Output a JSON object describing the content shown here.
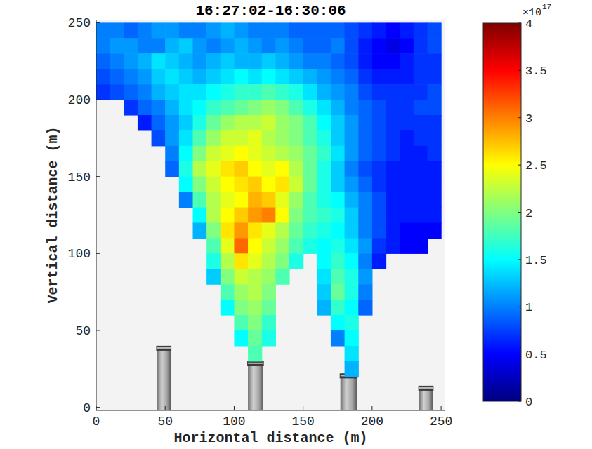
{
  "chart_data": {
    "type": "heatmap",
    "title": "16:27:02-16:30:06",
    "x_label": "Horizontal distance (m)",
    "y_label": "Vertical distance (m)",
    "xlim": [
      0,
      253
    ],
    "ylim": [
      -2,
      252
    ],
    "xticks": [
      0,
      50,
      100,
      150,
      200,
      250
    ],
    "yticks": [
      0,
      50,
      100,
      150,
      200,
      250
    ],
    "x": [
      5,
      15,
      25,
      35,
      45,
      55,
      65,
      75,
      85,
      95,
      105,
      115,
      125,
      135,
      145,
      155,
      165,
      175,
      185,
      195,
      205,
      215,
      225,
      235,
      245
    ],
    "y": [
      245,
      235,
      225,
      215,
      205,
      195,
      185,
      175,
      165,
      155,
      145,
      135,
      125,
      115,
      105,
      95,
      85,
      75,
      65,
      55,
      45,
      35,
      25,
      15,
      5
    ],
    "cells": [
      [
        1.0,
        1.0,
        0.9,
        1.0,
        1.1,
        1.1,
        1.0,
        1.0,
        1.1,
        1.2,
        1.1,
        1.0,
        1.0,
        1.0,
        0.9,
        0.9,
        0.9,
        0.9,
        0.8,
        0.7,
        0.6,
        0.5,
        0.6,
        0.7,
        0.8
      ],
      [
        1.0,
        1.1,
        1.1,
        1.0,
        1.0,
        1.2,
        1.3,
        1.1,
        1.0,
        1.1,
        1.2,
        1.1,
        1.0,
        1.1,
        1.0,
        0.9,
        0.9,
        1.0,
        0.8,
        0.6,
        0.5,
        0.4,
        0.5,
        0.7,
        0.8
      ],
      [
        0.9,
        1.0,
        1.1,
        1.2,
        1.4,
        1.3,
        1.2,
        1.1,
        1.2,
        1.3,
        1.2,
        1.2,
        1.3,
        1.2,
        1.1,
        1.0,
        1.0,
        0.9,
        0.8,
        0.6,
        0.5,
        0.5,
        0.6,
        0.7,
        0.7
      ],
      [
        0.8,
        0.9,
        1.0,
        1.1,
        1.3,
        1.4,
        1.3,
        1.2,
        1.3,
        1.4,
        1.5,
        1.4,
        1.5,
        1.4,
        1.3,
        1.2,
        1.1,
        1.0,
        0.9,
        0.7,
        0.6,
        0.6,
        0.6,
        0.7,
        0.7
      ],
      [
        0.7,
        0.8,
        0.9,
        1.0,
        1.2,
        1.3,
        1.4,
        1.4,
        1.5,
        1.6,
        1.7,
        1.7,
        1.8,
        1.7,
        1.6,
        1.4,
        1.2,
        1.1,
        1.0,
        0.8,
        0.7,
        0.7,
        0.7,
        0.7,
        0.8
      ],
      [
        null,
        null,
        0.7,
        0.9,
        1.0,
        1.2,
        1.4,
        1.5,
        1.7,
        1.8,
        1.9,
        2.0,
        2.1,
        2.0,
        1.8,
        1.6,
        1.4,
        1.2,
        1.0,
        0.9,
        0.8,
        0.7,
        0.7,
        0.8,
        0.8
      ],
      [
        null,
        null,
        null,
        0.6,
        0.9,
        1.1,
        1.3,
        1.6,
        1.9,
        2.1,
        2.2,
        2.2,
        2.3,
        2.1,
        2.0,
        1.8,
        1.5,
        1.3,
        1.1,
        0.9,
        0.8,
        0.7,
        0.7,
        0.7,
        0.7
      ],
      [
        null,
        null,
        null,
        null,
        0.8,
        1.1,
        1.4,
        1.8,
        2.1,
        2.3,
        2.3,
        2.4,
        2.2,
        2.1,
        2.0,
        1.8,
        1.6,
        1.3,
        1.1,
        0.9,
        0.8,
        0.7,
        0.6,
        0.7,
        0.7
      ],
      [
        null,
        null,
        null,
        null,
        null,
        1.0,
        1.5,
        2.0,
        2.3,
        2.4,
        2.5,
        2.4,
        2.3,
        2.2,
        2.1,
        1.9,
        1.7,
        1.4,
        1.1,
        0.9,
        0.8,
        0.7,
        0.6,
        0.6,
        0.7
      ],
      [
        null,
        null,
        null,
        null,
        null,
        0.9,
        1.6,
        2.2,
        2.4,
        2.6,
        2.7,
        2.5,
        2.4,
        2.5,
        2.2,
        1.9,
        1.6,
        1.3,
        1.0,
        0.8,
        0.7,
        0.6,
        0.6,
        0.6,
        0.6
      ],
      [
        null,
        null,
        null,
        null,
        null,
        null,
        1.5,
        2.0,
        2.3,
        2.5,
        2.6,
        2.7,
        2.5,
        2.6,
        2.3,
        1.9,
        1.6,
        1.3,
        1.1,
        0.9,
        0.7,
        0.6,
        0.6,
        0.6,
        0.6
      ],
      [
        null,
        null,
        null,
        null,
        null,
        null,
        1.0,
        1.8,
        2.2,
        2.4,
        2.5,
        2.8,
        2.7,
        2.4,
        2.1,
        1.8,
        1.6,
        1.5,
        1.2,
        1.0,
        0.8,
        0.6,
        0.6,
        0.6,
        0.6
      ],
      [
        null,
        null,
        null,
        null,
        null,
        null,
        null,
        1.5,
        2.2,
        2.5,
        2.7,
        2.9,
        3.0,
        2.5,
        2.0,
        1.8,
        1.7,
        1.6,
        1.3,
        1.0,
        0.8,
        0.6,
        0.6,
        0.6,
        0.6
      ],
      [
        null,
        null,
        null,
        null,
        null,
        null,
        null,
        1.2,
        2.0,
        2.6,
        2.9,
        2.6,
        2.4,
        2.2,
        1.9,
        1.7,
        1.6,
        1.5,
        1.3,
        1.0,
        0.8,
        0.6,
        0.5,
        0.5,
        0.5
      ],
      [
        null,
        null,
        null,
        null,
        null,
        null,
        null,
        null,
        1.8,
        2.4,
        3.1,
        2.5,
        2.3,
        2.1,
        1.8,
        1.6,
        1.5,
        1.6,
        1.4,
        1.1,
        0.7,
        0.6,
        0.5,
        0.5,
        null
      ],
      [
        null,
        null,
        null,
        null,
        null,
        null,
        null,
        null,
        1.6,
        2.2,
        2.6,
        2.4,
        2.2,
        2.0,
        1.6,
        null,
        1.5,
        1.7,
        1.5,
        1.0,
        0.6,
        null,
        null,
        null,
        null
      ],
      [
        null,
        null,
        null,
        null,
        null,
        null,
        null,
        null,
        1.3,
        2.0,
        2.3,
        2.2,
        2.1,
        1.8,
        null,
        null,
        1.4,
        1.8,
        1.6,
        1.1,
        null,
        null,
        null,
        null,
        null
      ],
      [
        null,
        null,
        null,
        null,
        null,
        null,
        null,
        null,
        null,
        1.8,
        2.1,
        2.2,
        2.0,
        null,
        null,
        null,
        1.3,
        1.9,
        1.6,
        1.0,
        null,
        null,
        null,
        null,
        null
      ],
      [
        null,
        null,
        null,
        null,
        null,
        null,
        null,
        null,
        null,
        1.5,
        2.0,
        2.1,
        1.9,
        null,
        null,
        null,
        1.2,
        1.7,
        1.5,
        0.9,
        null,
        null,
        null,
        null,
        null
      ],
      [
        null,
        null,
        null,
        null,
        null,
        null,
        null,
        null,
        null,
        null,
        1.8,
        2.0,
        1.7,
        null,
        null,
        null,
        null,
        1.5,
        1.6,
        null,
        null,
        null,
        null,
        null,
        null
      ],
      [
        null,
        null,
        null,
        null,
        null,
        null,
        null,
        null,
        null,
        null,
        1.5,
        1.9,
        1.6,
        null,
        null,
        null,
        null,
        1.0,
        1.5,
        null,
        null,
        null,
        null,
        null,
        null
      ],
      [
        null,
        null,
        null,
        null,
        null,
        null,
        null,
        null,
        null,
        null,
        null,
        1.8,
        null,
        null,
        null,
        null,
        null,
        null,
        1.4,
        null,
        null,
        null,
        null,
        null,
        null
      ],
      [
        null,
        null,
        null,
        null,
        null,
        null,
        null,
        null,
        null,
        null,
        null,
        null,
        null,
        null,
        null,
        null,
        null,
        null,
        1.2,
        null,
        null,
        null,
        null,
        null,
        null
      ],
      [
        null,
        null,
        null,
        null,
        null,
        null,
        null,
        null,
        null,
        null,
        null,
        null,
        null,
        null,
        null,
        null,
        null,
        null,
        null,
        null,
        null,
        null,
        null,
        null,
        null
      ],
      [
        null,
        null,
        null,
        null,
        null,
        null,
        null,
        null,
        null,
        null,
        null,
        null,
        null,
        null,
        null,
        null,
        null,
        null,
        null,
        null,
        null,
        null,
        null,
        null,
        null
      ]
    ],
    "color_range": [
      0,
      4
    ],
    "color_ticks": [
      0,
      0.5,
      1,
      1.5,
      2,
      2.5,
      3,
      3.5,
      4
    ],
    "colorbar_factor": "×10",
    "colorbar_exponent": "17"
  }
}
